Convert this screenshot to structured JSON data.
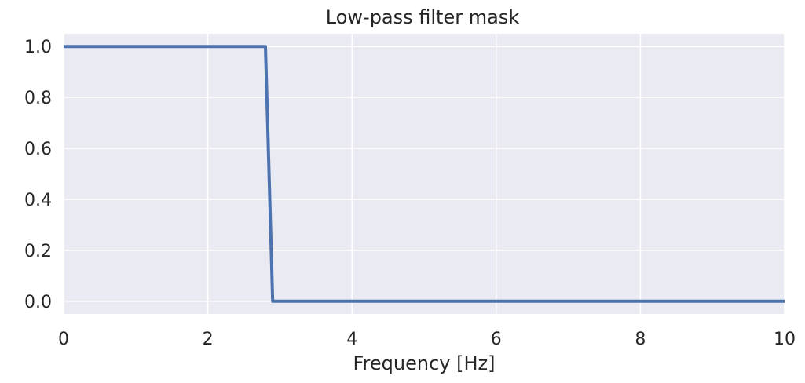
{
  "chart_data": {
    "type": "line",
    "title": "Low-pass filter mask",
    "xlabel": "Frequency [Hz]",
    "ylabel": "",
    "xlim": [
      0,
      10
    ],
    "ylim": [
      -0.05,
      1.05
    ],
    "x_ticks": [
      0,
      2,
      4,
      6,
      8,
      10
    ],
    "y_ticks": [
      0.0,
      0.2,
      0.4,
      0.6,
      0.8,
      1.0
    ],
    "x_tick_labels": [
      "0",
      "2",
      "4",
      "6",
      "8",
      "10"
    ],
    "y_tick_labels": [
      "0.0",
      "0.2",
      "0.4",
      "0.6",
      "0.8",
      "1.0"
    ],
    "grid": true,
    "series": [
      {
        "color": "#4c72b0",
        "x": [
          0,
          2.8,
          2.9,
          10
        ],
        "y": [
          1.0,
          1.0,
          0.0,
          0.0
        ]
      }
    ],
    "background_color": "#eaeaf2",
    "grid_color": "#ffffff"
  }
}
